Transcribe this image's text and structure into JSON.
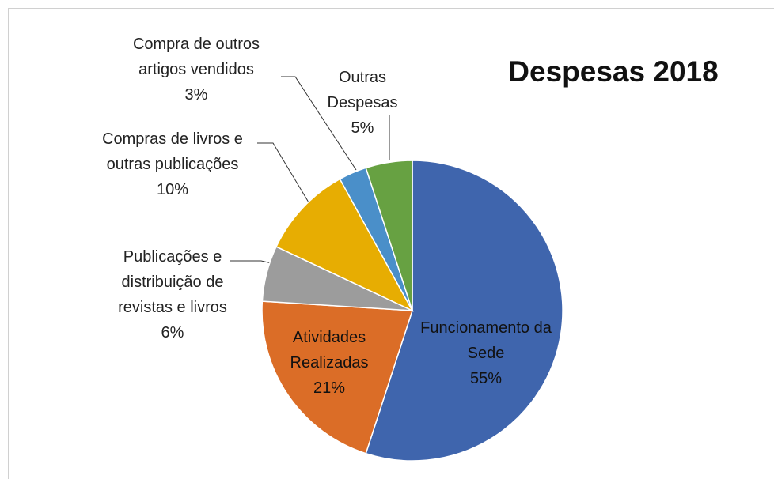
{
  "chart_data": {
    "type": "pie",
    "title": "Despesas 2018",
    "categories": [
      "Funcionamento da Sede",
      "Atividades Realizadas",
      "Publicações e distribuição de revistas e livros",
      "Compras de livros e outras publicações",
      "Compra de outros artigos vendidos",
      "Outras Despesas"
    ],
    "values": [
      55,
      21,
      6,
      10,
      3,
      5
    ],
    "value_labels": [
      "55%",
      "21%",
      "6%",
      "10%",
      "3%",
      "5%"
    ],
    "colors": [
      "#3f65ad",
      "#db6d27",
      "#9c9c9c",
      "#e7ad02",
      "#4a8fc9",
      "#67a142"
    ]
  }
}
